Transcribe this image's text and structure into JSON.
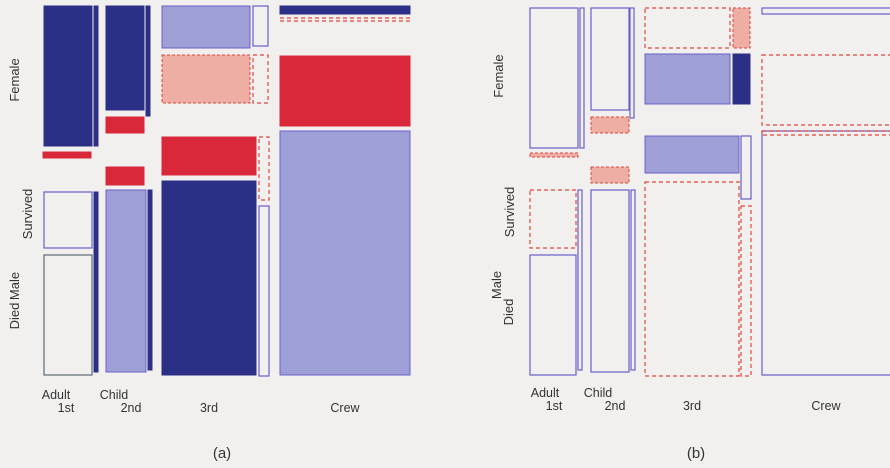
{
  "chart_data": [
    {
      "type": "mosaic",
      "caption": "(a)",
      "x_factors": {
        "class": [
          "1st",
          "2nd",
          "3rd",
          "Crew"
        ],
        "age": [
          "Adult",
          "Child"
        ]
      },
      "y_factors": {
        "sex": [
          "Female",
          "Male"
        ],
        "survival": [
          "Survived",
          "Died"
        ]
      },
      "cells": [
        {
          "cls": "1st",
          "age": "Adult",
          "sex": "Female",
          "surv": "Survived",
          "style": "s-dark"
        },
        {
          "cls": "1st",
          "age": "Adult",
          "sex": "Female",
          "surv": "Died",
          "style": "s-red"
        },
        {
          "cls": "1st",
          "age": "Child",
          "sex": "Female",
          "surv": "Survived",
          "style": "s-dark"
        },
        {
          "cls": "1st",
          "age": "Adult",
          "sex": "Male",
          "surv": "Survived",
          "style": "o-blue"
        },
        {
          "cls": "1st",
          "age": "Adult",
          "sex": "Male",
          "surv": "Died",
          "style": "o-gray"
        },
        {
          "cls": "1st",
          "age": "Child",
          "sex": "Male",
          "surv": "Survived",
          "style": "s-dark"
        },
        {
          "cls": "2nd",
          "age": "Adult",
          "sex": "Female",
          "surv": "Survived",
          "style": "s-dark"
        },
        {
          "cls": "2nd",
          "age": "Adult",
          "sex": "Female",
          "surv": "Died",
          "style": "s-red"
        },
        {
          "cls": "2nd",
          "age": "Child",
          "sex": "Female",
          "surv": "Survived",
          "style": "s-dark"
        },
        {
          "cls": "2nd",
          "age": "Adult",
          "sex": "Male",
          "surv": "Survived",
          "style": "s-red"
        },
        {
          "cls": "2nd",
          "age": "Adult",
          "sex": "Male",
          "surv": "Died",
          "style": "s-light"
        },
        {
          "cls": "2nd",
          "age": "Child",
          "sex": "Male",
          "surv": "Survived",
          "style": "s-dark"
        },
        {
          "cls": "3rd",
          "age": "Adult",
          "sex": "Female",
          "surv": "Survived",
          "style": "s-light"
        },
        {
          "cls": "3rd",
          "age": "Adult",
          "sex": "Female",
          "surv": "Died",
          "style": "s-pink"
        },
        {
          "cls": "3rd",
          "age": "Child",
          "sex": "Female",
          "surv": "Survived",
          "style": "o-blue"
        },
        {
          "cls": "3rd",
          "age": "Child",
          "sex": "Female",
          "surv": "Died",
          "style": "d-red"
        },
        {
          "cls": "3rd",
          "age": "Adult",
          "sex": "Male",
          "surv": "Survived",
          "style": "s-red"
        },
        {
          "cls": "3rd",
          "age": "Adult",
          "sex": "Male",
          "surv": "Died",
          "style": "s-dark"
        },
        {
          "cls": "3rd",
          "age": "Child",
          "sex": "Male",
          "surv": "Survived",
          "style": "d-red"
        },
        {
          "cls": "3rd",
          "age": "Child",
          "sex": "Male",
          "surv": "Died",
          "style": "o-blue"
        },
        {
          "cls": "Crew",
          "age": "Adult",
          "sex": "Female",
          "surv": "Survived",
          "style": "s-dark"
        },
        {
          "cls": "Crew",
          "age": "Adult",
          "sex": "Female",
          "surv": "Died",
          "style": "d-red"
        },
        {
          "cls": "Crew",
          "age": "Adult",
          "sex": "Male",
          "surv": "Survived",
          "style": "s-red"
        },
        {
          "cls": "Crew",
          "age": "Adult",
          "sex": "Male",
          "surv": "Died",
          "style": "s-light"
        }
      ]
    },
    {
      "type": "mosaic",
      "caption": "(b)",
      "x_factors": {
        "class": [
          "1st",
          "2nd",
          "3rd",
          "Crew"
        ],
        "age": [
          "Adult",
          "Child"
        ]
      },
      "y_factors": {
        "sex": [
          "Female",
          "Male"
        ],
        "survival": [
          "Survived",
          "Died"
        ]
      },
      "cells": [
        {
          "cls": "1st",
          "age": "Adult",
          "sex": "Female",
          "surv": "Survived",
          "style": "o-blue"
        },
        {
          "cls": "1st",
          "age": "Adult",
          "sex": "Female",
          "surv": "Died",
          "style": "s-pink"
        },
        {
          "cls": "1st",
          "age": "Child",
          "sex": "Female",
          "surv": "Survived",
          "style": "o-blue"
        },
        {
          "cls": "1st",
          "age": "Adult",
          "sex": "Male",
          "surv": "Survived",
          "style": "d-red"
        },
        {
          "cls": "1st",
          "age": "Adult",
          "sex": "Male",
          "surv": "Died",
          "style": "o-blue"
        },
        {
          "cls": "1st",
          "age": "Child",
          "sex": "Male",
          "surv": "Survived",
          "style": "o-blue"
        },
        {
          "cls": "2nd",
          "age": "Adult",
          "sex": "Female",
          "surv": "Survived",
          "style": "o-blue"
        },
        {
          "cls": "2nd",
          "age": "Adult",
          "sex": "Female",
          "surv": "Died",
          "style": "s-pink"
        },
        {
          "cls": "2nd",
          "age": "Child",
          "sex": "Female",
          "surv": "Survived",
          "style": "o-blue"
        },
        {
          "cls": "2nd",
          "age": "Adult",
          "sex": "Male",
          "surv": "Survived",
          "style": "s-pink"
        },
        {
          "cls": "2nd",
          "age": "Adult",
          "sex": "Male",
          "surv": "Died",
          "style": "o-blue"
        },
        {
          "cls": "2nd",
          "age": "Child",
          "sex": "Male",
          "surv": "Survived",
          "style": "o-blue"
        },
        {
          "cls": "3rd",
          "age": "Adult",
          "sex": "Female",
          "surv": "Survived",
          "style": "d-red"
        },
        {
          "cls": "3rd",
          "age": "Adult",
          "sex": "Female",
          "surv": "Died",
          "style": "s-light"
        },
        {
          "cls": "3rd",
          "age": "Child",
          "sex": "Female",
          "surv": "Survived",
          "style": "s-pink"
        },
        {
          "cls": "3rd",
          "age": "Child",
          "sex": "Female",
          "surv": "Died",
          "style": "s-dark"
        },
        {
          "cls": "3rd",
          "age": "Adult",
          "sex": "Male",
          "surv": "Survived",
          "style": "s-light"
        },
        {
          "cls": "3rd",
          "age": "Adult",
          "sex": "Male",
          "surv": "Died",
          "style": "d-red"
        },
        {
          "cls": "3rd",
          "age": "Child",
          "sex": "Male",
          "surv": "Survived",
          "style": "o-blue"
        },
        {
          "cls": "3rd",
          "age": "Child",
          "sex": "Male",
          "surv": "Died",
          "style": "d-red"
        },
        {
          "cls": "Crew",
          "age": "Adult",
          "sex": "Female",
          "surv": "Survived",
          "style": "o-blue"
        },
        {
          "cls": "Crew",
          "age": "Adult",
          "sex": "Female",
          "surv": "Died",
          "style": "d-red"
        },
        {
          "cls": "Crew",
          "age": "Adult",
          "sex": "Male",
          "surv": "Survived",
          "style": "d-red"
        },
        {
          "cls": "Crew",
          "age": "Adult",
          "sex": "Male",
          "surv": "Died",
          "style": "o-blue"
        }
      ]
    }
  ],
  "colors": {
    "dark_blue": "#2b2f86",
    "light_blue": "#9f9fd7",
    "red": "#d9283a",
    "pink": "#eeaea4",
    "outline_blue": "#6a5fc8",
    "outline_gray": "#5e6a73",
    "dashed_red": "#e0463c"
  }
}
